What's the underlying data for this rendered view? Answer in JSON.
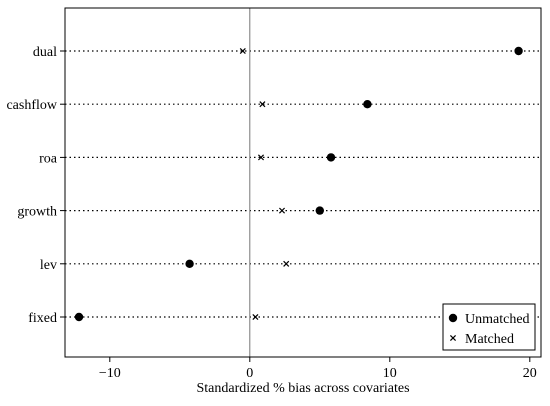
{
  "chart_data": {
    "type": "scatter",
    "title": "",
    "xlabel": "Standardized % bias across covariates",
    "ylabel": "",
    "xlim": [
      -13.2,
      20.8
    ],
    "x_ticks": [
      -10,
      0,
      10,
      20
    ],
    "x_tick_labels": [
      "−10",
      "0",
      "10",
      "20"
    ],
    "reference_line_x": 0,
    "grid": "dotted horizontal line per covariate",
    "legend_position": "bottom-right",
    "categories": [
      "dual",
      "cashflow",
      "roa",
      "growth",
      "lev",
      "fixed"
    ],
    "series": [
      {
        "name": "Unmatched",
        "marker": "filled-circle",
        "values": [
          19.2,
          8.4,
          5.8,
          5.0,
          -4.3,
          -12.2
        ]
      },
      {
        "name": "Matched",
        "marker": "x-cross",
        "values": [
          -0.5,
          0.9,
          0.8,
          2.3,
          2.6,
          0.4
        ]
      }
    ]
  }
}
